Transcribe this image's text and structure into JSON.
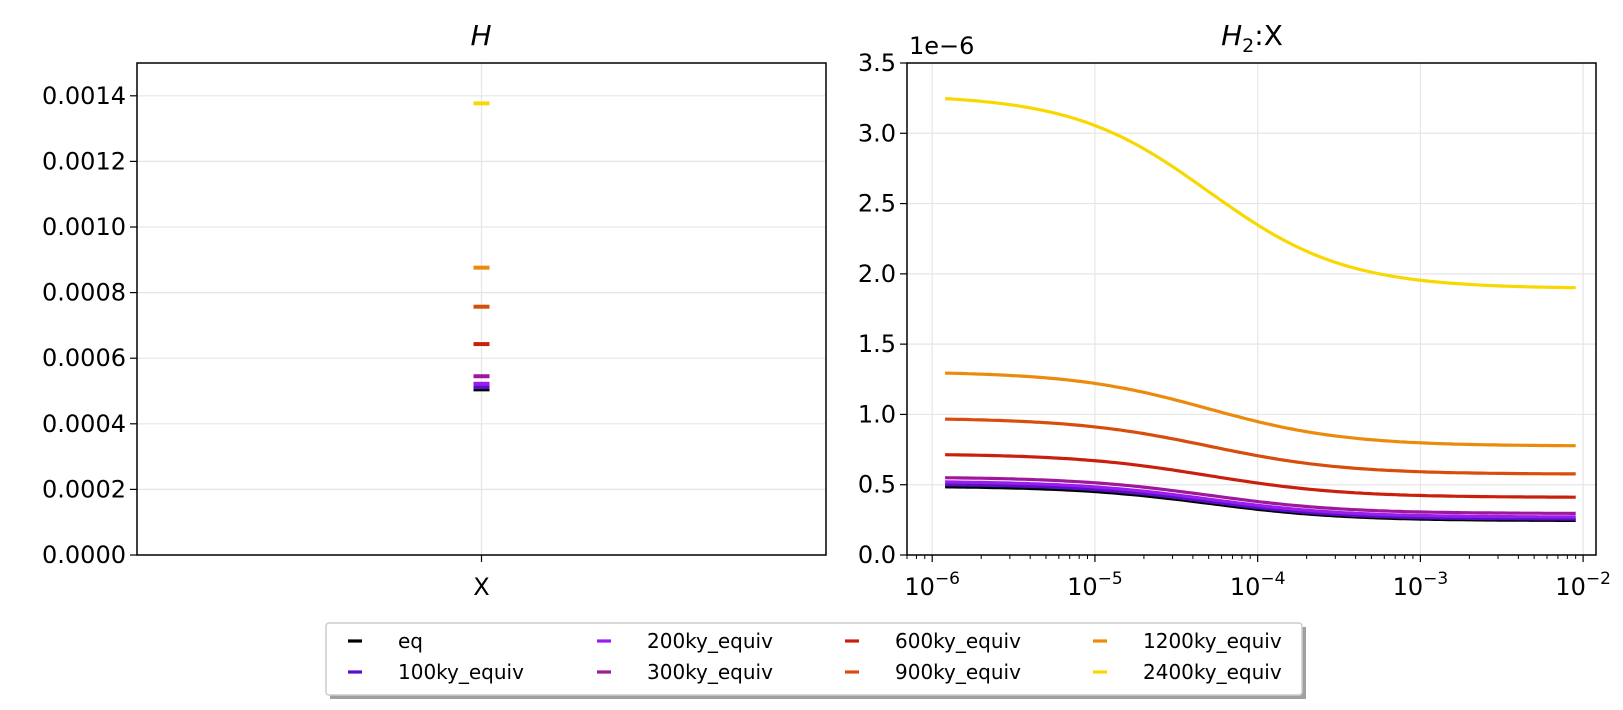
{
  "chart_data": [
    {
      "type": "scatter",
      "title": "H",
      "categories": [
        "X"
      ],
      "ylim": [
        0,
        0.0015
      ],
      "yticks": [
        "0.0000",
        "0.0002",
        "0.0004",
        "0.0006",
        "0.0008",
        "0.0010",
        "0.0012",
        "0.0014"
      ],
      "grid": true,
      "series": [
        {
          "name": "eq",
          "values": [
            0.000505
          ]
        },
        {
          "name": "100ky_equiv",
          "values": [
            0.000512
          ]
        },
        {
          "name": "200ky_equiv",
          "values": [
            0.000522
          ]
        },
        {
          "name": "300ky_equiv",
          "values": [
            0.000545
          ]
        },
        {
          "name": "600ky_equiv",
          "values": [
            0.000643
          ]
        },
        {
          "name": "900ky_equiv",
          "values": [
            0.000757
          ]
        },
        {
          "name": "1200ky_equiv",
          "values": [
            0.000876
          ]
        },
        {
          "name": "2400ky_equiv",
          "values": [
            0.001377
          ]
        }
      ]
    },
    {
      "type": "line",
      "title": "H",
      "title_subscript": "2",
      "title_suffix": ":X",
      "x_scale": "log",
      "xlim": [
        7e-07,
        0.012
      ],
      "ylim": [
        0,
        3.5
      ],
      "y_offset_label": "1e−6",
      "yticks": [
        "0.0",
        "0.5",
        "1.0",
        "1.5",
        "2.0",
        "2.5",
        "3.0",
        "3.5"
      ],
      "xtick_exponents": [
        "−6",
        "−5",
        "−4",
        "−3",
        "−2"
      ],
      "xtick_base": "10",
      "grid": true,
      "series": [
        {
          "name": "eq",
          "high": 0.49,
          "low": 0.245
        },
        {
          "name": "100ky_equiv",
          "high": 0.505,
          "low": 0.255
        },
        {
          "name": "200ky_equiv",
          "high": 0.525,
          "low": 0.27
        },
        {
          "name": "300ky_equiv",
          "high": 0.555,
          "low": 0.295
        },
        {
          "name": "600ky_equiv",
          "high": 0.72,
          "low": 0.41
        },
        {
          "name": "900ky_equiv",
          "high": 0.975,
          "low": 0.575
        },
        {
          "name": "1200ky_equiv",
          "high": 1.305,
          "low": 0.775
        },
        {
          "name": "2400ky_equiv",
          "high": 3.275,
          "low": 1.895
        }
      ]
    }
  ],
  "colors": {
    "eq": "#000000",
    "100ky_equiv": "#5a10c8",
    "200ky_equiv": "#9b1cf0",
    "300ky_equiv": "#a0189a",
    "600ky_equiv": "#c8200c",
    "900ky_equiv": "#d84c0c",
    "1200ky_equiv": "#ec8a0c",
    "2400ky_equiv": "#f8d800"
  },
  "legend": {
    "placement": "lower-center",
    "columns": 4,
    "entries": [
      "eq",
      "100ky_equiv",
      "200ky_equiv",
      "300ky_equiv",
      "600ky_equiv",
      "900ky_equiv",
      "1200ky_equiv",
      "2400ky_equiv"
    ]
  }
}
